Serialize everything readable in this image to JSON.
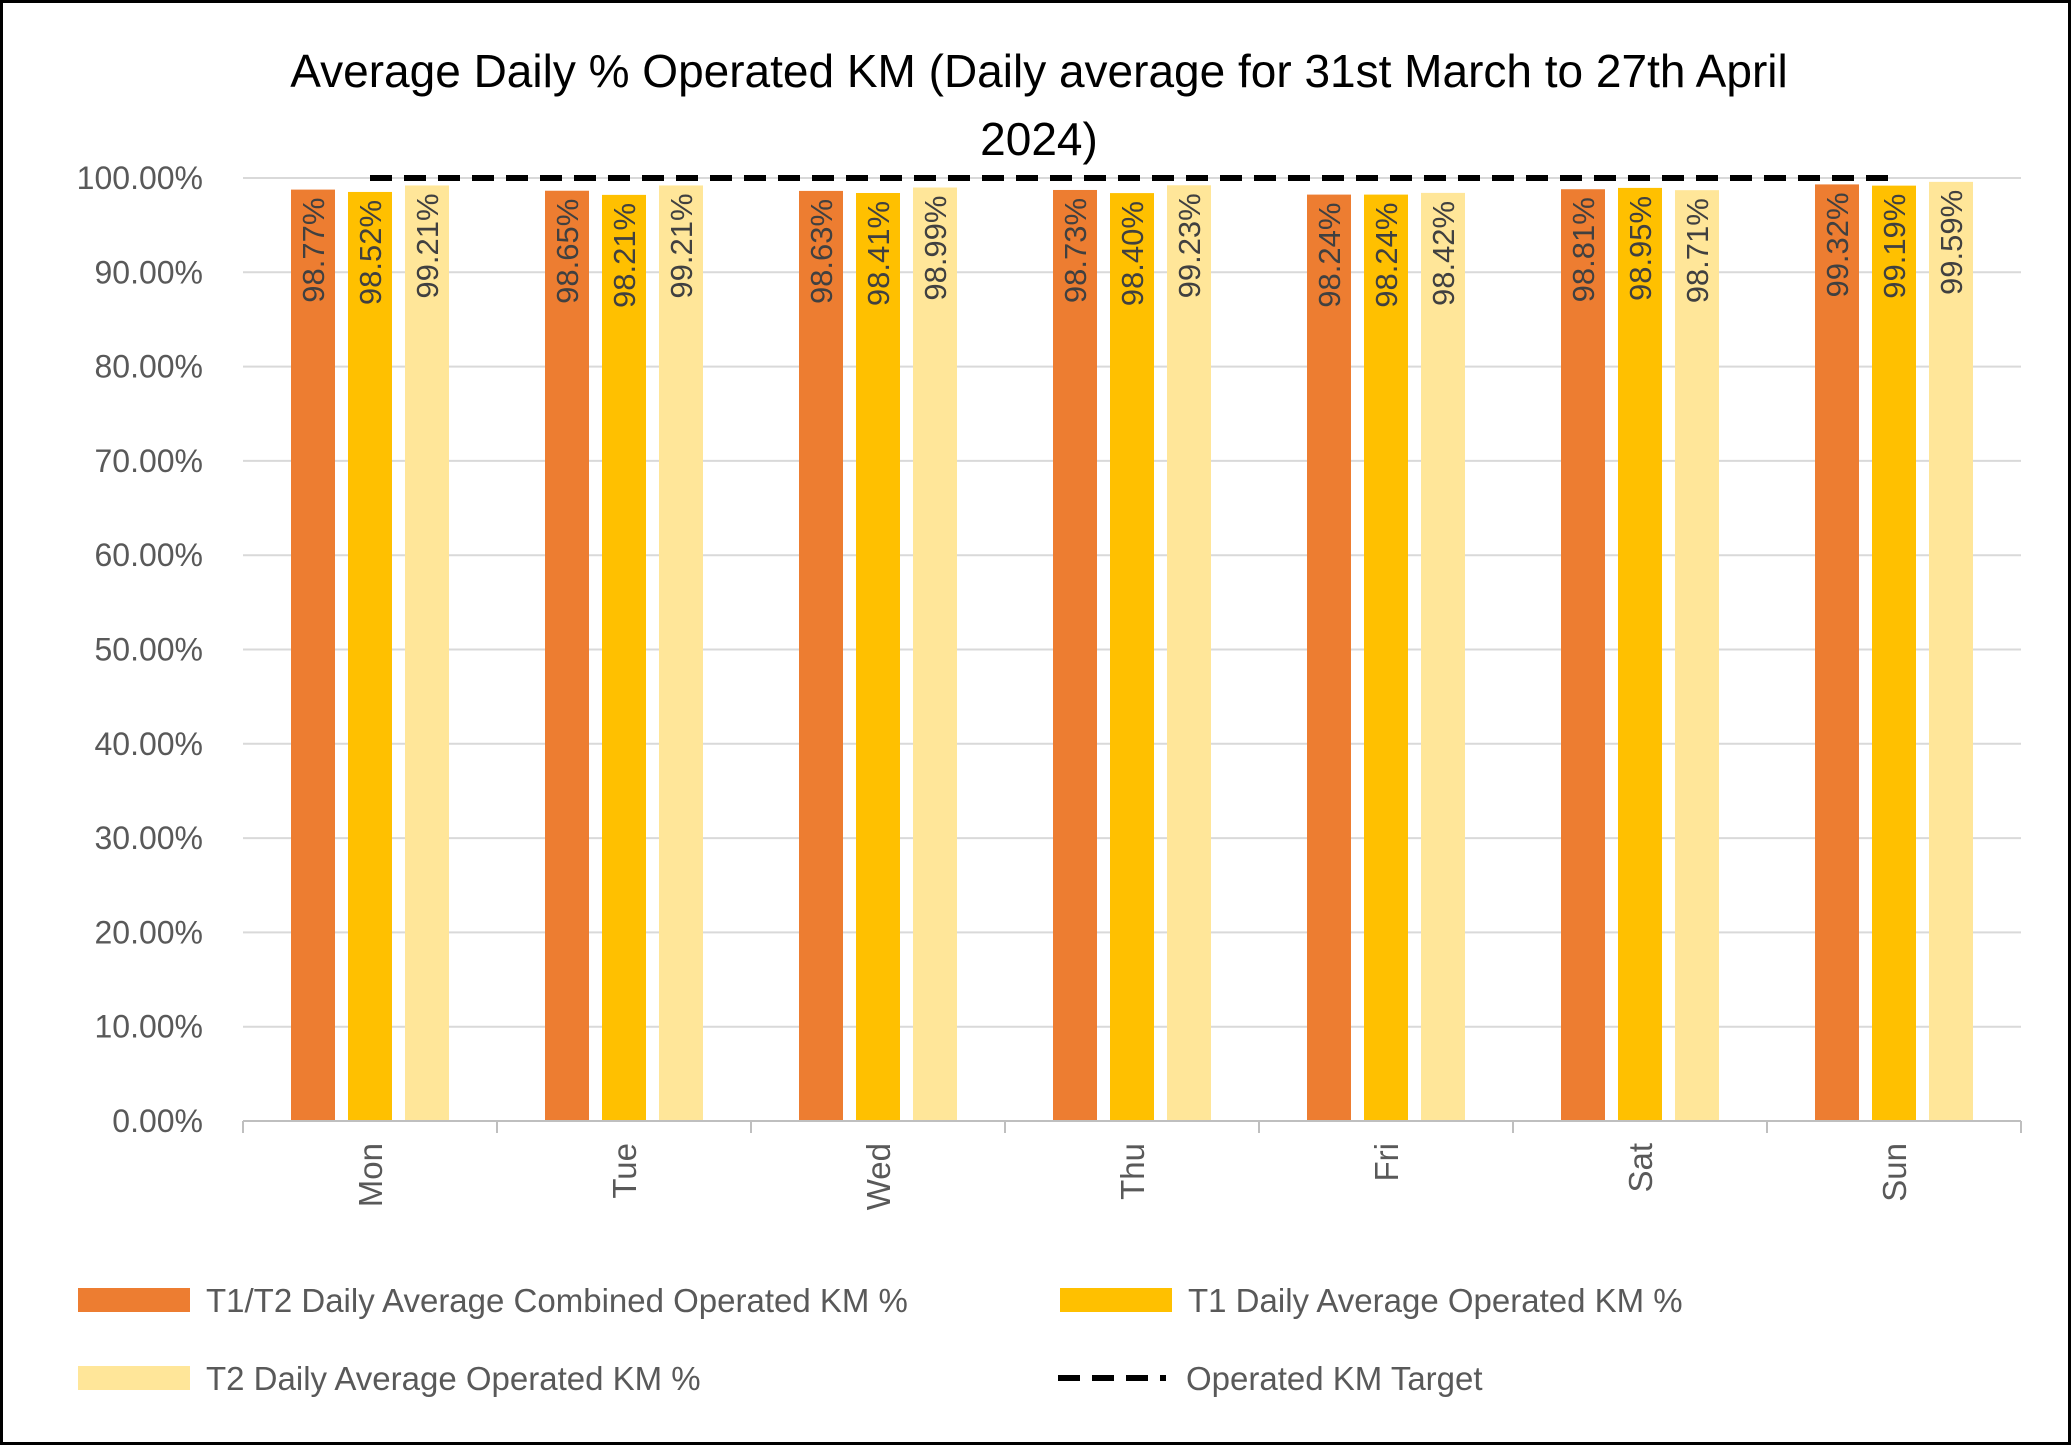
{
  "chart_data": {
    "type": "bar",
    "title": "Average Daily % Operated KM (Daily average for 31st March to 27th April 2024)",
    "title_lines": [
      "Average Daily % Operated KM (Daily average for 31st March to 27th April",
      "2024)"
    ],
    "categories": [
      "Mon",
      "Tue",
      "Wed",
      "Thu",
      "Fri",
      "Sat",
      "Sun"
    ],
    "series": [
      {
        "name": "T1/T2 Daily Average Combined Operated KM %",
        "color": "#ED7D31",
        "values": [
          98.77,
          98.65,
          98.63,
          98.73,
          98.24,
          98.81,
          99.32
        ],
        "labels": [
          "98.77%",
          "98.65%",
          "98.63%",
          "98.73%",
          "98.24%",
          "98.81%",
          "99.32%"
        ]
      },
      {
        "name": "T1 Daily Average Operated KM %",
        "color": "#FFC000",
        "values": [
          98.52,
          98.21,
          98.41,
          98.4,
          98.24,
          98.95,
          99.19
        ],
        "labels": [
          "98.52%",
          "98.21%",
          "98.41%",
          "98.40%",
          "98.24%",
          "98.95%",
          "99.19%"
        ]
      },
      {
        "name": "T2 Daily Average Operated KM %",
        "color": "#FFE699",
        "values": [
          99.21,
          99.21,
          98.99,
          99.23,
          98.42,
          98.71,
          99.59
        ],
        "labels": [
          "99.21%",
          "99.21%",
          "98.99%",
          "99.23%",
          "98.42%",
          "98.71%",
          "99.59%"
        ]
      }
    ],
    "target_line": {
      "name": "Operated KM Target",
      "value": 100,
      "color": "#000000",
      "style": "dashed"
    },
    "y_ticks": [
      "0.00%",
      "10.00%",
      "20.00%",
      "30.00%",
      "40.00%",
      "50.00%",
      "60.00%",
      "70.00%",
      "80.00%",
      "90.00%",
      "100.00%"
    ],
    "ylim": [
      0,
      100
    ],
    "grid": true,
    "legend_position": "bottom"
  }
}
